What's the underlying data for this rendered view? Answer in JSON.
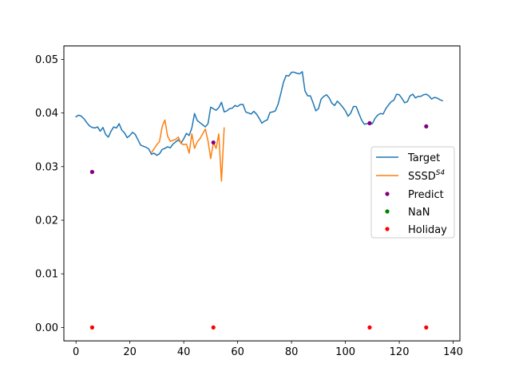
{
  "chart_data": {
    "type": "line",
    "xlim": [
      -4.5,
      142.5
    ],
    "ylim": [
      -0.0025,
      0.0525
    ],
    "x_ticks": [
      0,
      20,
      40,
      60,
      80,
      100,
      120,
      140
    ],
    "x_tick_labels": [
      "0",
      "20",
      "40",
      "60",
      "80",
      "100",
      "120",
      "140"
    ],
    "y_ticks": [
      0.0,
      0.01,
      0.02,
      0.03,
      0.04,
      0.05
    ],
    "y_tick_labels": [
      "0.00",
      "0.01",
      "0.02",
      "0.03",
      "0.04",
      "0.05"
    ],
    "grid": false,
    "legend_position": "center-right",
    "series": [
      {
        "name": "Target",
        "kind": "line",
        "color": "#1f77b4",
        "x": [
          0,
          1,
          2,
          3,
          4,
          5,
          6,
          7,
          8,
          9,
          10,
          11,
          12,
          13,
          14,
          15,
          16,
          17,
          18,
          19,
          20,
          21,
          22,
          23,
          24,
          25,
          26,
          27,
          28,
          29,
          30,
          31,
          32,
          33,
          34,
          35,
          36,
          37,
          38,
          39,
          40,
          41,
          42,
          43,
          44,
          45,
          46,
          47,
          48,
          49,
          50,
          51,
          52,
          53,
          54,
          55,
          56,
          57,
          58,
          59,
          60,
          61,
          62,
          63,
          64,
          65,
          66,
          67,
          68,
          69,
          70,
          71,
          72,
          73,
          74,
          75,
          76,
          77,
          78,
          79,
          80,
          81,
          82,
          83,
          84,
          85,
          86,
          87,
          88,
          89,
          90,
          91,
          92,
          93,
          94,
          95,
          96,
          97,
          98,
          99,
          100,
          101,
          102,
          103,
          104,
          105,
          106,
          107,
          108,
          109,
          110,
          111,
          112,
          113,
          114,
          115,
          116,
          117,
          118,
          119,
          120,
          121,
          122,
          123,
          124,
          125,
          126,
          127,
          128,
          129,
          130,
          131,
          132,
          133,
          134,
          135,
          136
        ],
        "y": [
          0.0393,
          0.0396,
          0.0394,
          0.0389,
          0.0382,
          0.0376,
          0.0373,
          0.0372,
          0.0374,
          0.0366,
          0.0373,
          0.036,
          0.0355,
          0.0366,
          0.0374,
          0.0372,
          0.038,
          0.0368,
          0.0363,
          0.0354,
          0.0358,
          0.0364,
          0.036,
          0.035,
          0.034,
          0.0338,
          0.0336,
          0.0333,
          0.0323,
          0.0325,
          0.0321,
          0.0324,
          0.0332,
          0.0334,
          0.0337,
          0.0335,
          0.0342,
          0.0346,
          0.035,
          0.0344,
          0.0352,
          0.0362,
          0.0358,
          0.0372,
          0.0399,
          0.0386,
          0.0382,
          0.0378,
          0.0374,
          0.038,
          0.0411,
          0.0408,
          0.0405,
          0.041,
          0.042,
          0.0402,
          0.0404,
          0.0408,
          0.0409,
          0.0414,
          0.0412,
          0.0416,
          0.0416,
          0.0402,
          0.04,
          0.0398,
          0.0403,
          0.0398,
          0.039,
          0.0381,
          0.0385,
          0.0387,
          0.0401,
          0.0402,
          0.0404,
          0.0416,
          0.0436,
          0.0457,
          0.047,
          0.0469,
          0.0476,
          0.0476,
          0.0474,
          0.0473,
          0.0477,
          0.0441,
          0.0432,
          0.0432,
          0.0419,
          0.0404,
          0.0408,
          0.0426,
          0.0431,
          0.0434,
          0.0428,
          0.0418,
          0.0414,
          0.0422,
          0.0417,
          0.0411,
          0.0404,
          0.0394,
          0.04,
          0.0412,
          0.0412,
          0.0399,
          0.0387,
          0.0379,
          0.038,
          0.0382,
          0.038,
          0.039,
          0.0396,
          0.0399,
          0.0398,
          0.0408,
          0.0415,
          0.0421,
          0.0424,
          0.0435,
          0.0434,
          0.0427,
          0.0419,
          0.0421,
          0.0432,
          0.0435,
          0.0428,
          0.0431,
          0.0431,
          0.0434,
          0.0435,
          0.0432,
          0.0426,
          0.0429,
          0.0428,
          0.0425,
          0.0423
        ]
      },
      {
        "name": "SSSD",
        "name_sup": "S4",
        "kind": "line",
        "color": "#ff7f0e",
        "x": [
          28,
          29,
          30,
          31,
          32,
          33,
          34,
          35,
          36,
          37,
          38,
          39,
          40,
          41,
          42,
          43,
          44,
          45,
          46,
          47,
          48,
          49,
          50,
          51,
          52,
          53,
          54,
          55
        ],
        "y": [
          0.0326,
          0.0333,
          0.0341,
          0.0347,
          0.0375,
          0.0387,
          0.0357,
          0.0347,
          0.0349,
          0.0351,
          0.0355,
          0.0343,
          0.0341,
          0.0342,
          0.0325,
          0.0361,
          0.0334,
          0.0346,
          0.0352,
          0.0361,
          0.037,
          0.0348,
          0.0315,
          0.0345,
          0.0334,
          0.0361,
          0.0273,
          0.0372
        ]
      },
      {
        "name": "Predict",
        "kind": "scatter",
        "color": "#800080",
        "x": [
          6,
          51,
          109,
          130
        ],
        "y": [
          0.029,
          0.0345,
          0.0381,
          0.0375
        ]
      },
      {
        "name": "NaN",
        "kind": "scatter",
        "color": "#008000",
        "x": [],
        "y": []
      },
      {
        "name": "Holiday",
        "kind": "scatter",
        "color": "#ff0000",
        "x": [
          6,
          51,
          109,
          130
        ],
        "y": [
          0,
          0,
          0,
          0
        ]
      }
    ]
  }
}
